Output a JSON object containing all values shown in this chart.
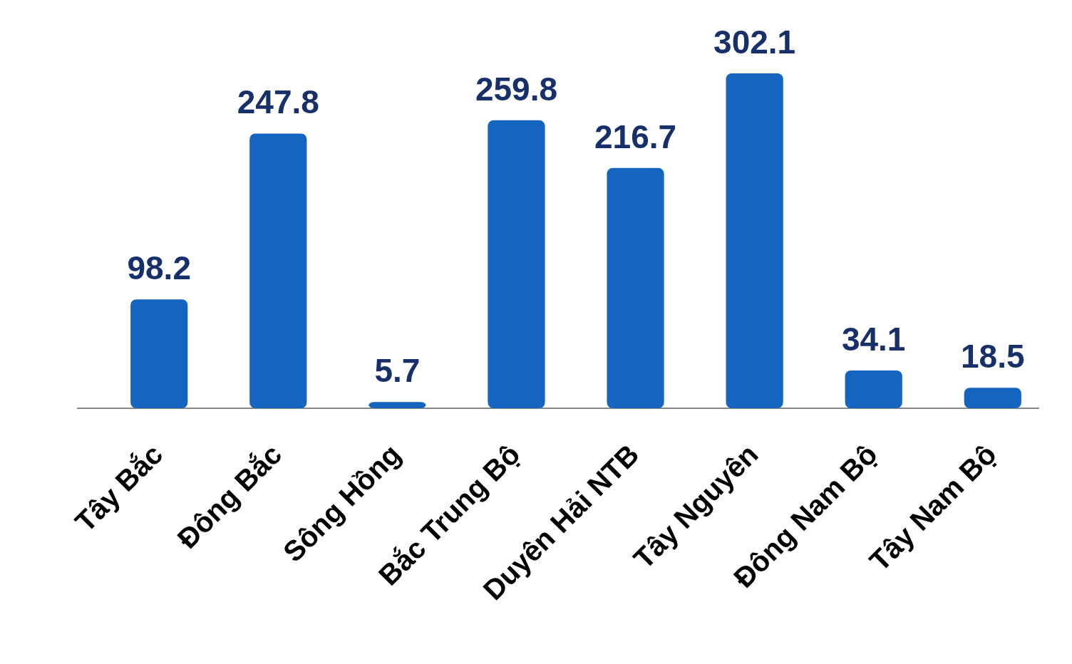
{
  "chart_data": {
    "type": "bar",
    "categories": [
      "Tây Bắc",
      "Đông Bắc",
      "Sông Hồng",
      "Bắc Trung Bộ",
      "Duyên Hải NTB",
      "Tây Nguyên",
      "Đông Nam Bộ",
      "Tây Nam Bộ"
    ],
    "values": [
      98.2,
      247.8,
      5.7,
      259.8,
      216.7,
      302.1,
      34.1,
      18.5
    ],
    "color": "#1565c0",
    "data_labels": true
  }
}
